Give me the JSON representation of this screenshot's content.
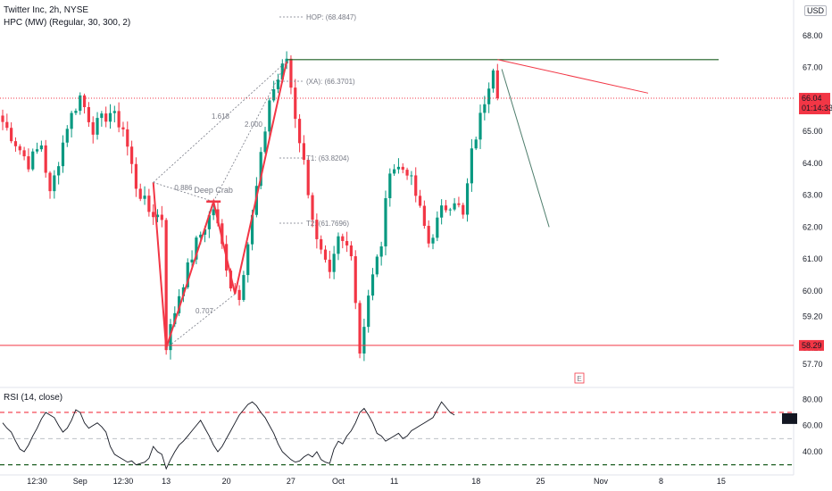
{
  "header": {
    "title": "Twitter Inc, 2h, NYSE",
    "indicator": "HPC (MW) (Regular, 30, 300, 2)",
    "currency": "USD"
  },
  "rsi_panel": {
    "label": "RSI (14, close)",
    "badge": "RSI"
  },
  "price_badges": {
    "current": "66.04",
    "countdown": "01:14:33",
    "support": "58.29"
  },
  "pattern": {
    "name": "Deep Crab",
    "ratios": [
      "0.886",
      "1.618",
      "2.000",
      "0.707"
    ],
    "levels": [
      "HOP: (68.4847)",
      "(XA): (66.3701)",
      "T1: (63.8204)",
      "T2: (61.7696)"
    ],
    "event_marker": "E"
  },
  "colors": {
    "up": "#089981",
    "down": "#f23645",
    "resistance": "#1b5e20",
    "support": "#f23645",
    "rsi_line": "#131722"
  },
  "chart_data": [
    {
      "type": "candlestick",
      "title": "Twitter Inc, 2h, NYSE",
      "ylim": [
        57.3,
        68.7
      ],
      "y_ticks": [
        "68.00",
        "67.00",
        "66.00",
        "65.00",
        "64.00",
        "63.00",
        "62.00",
        "61.00",
        "60.00",
        "59.20",
        "58.20",
        "57.70"
      ],
      "x_ticks": [
        "12:30",
        "Sep",
        "12:30",
        "13",
        "20",
        "27",
        "Oct",
        "11",
        "18",
        "25",
        "Nov",
        "8",
        "15"
      ],
      "x_tick_index": [
        8,
        18,
        28,
        38,
        52,
        67,
        78,
        91,
        110,
        125,
        139,
        153,
        167
      ],
      "anchors": [
        [
          0,
          65.3
        ],
        [
          6,
          64.0
        ],
        [
          9,
          64.6
        ],
        [
          11,
          63.0
        ],
        [
          15,
          65.2
        ],
        [
          18,
          66.1
        ],
        [
          21,
          65.1
        ],
        [
          25,
          65.6
        ],
        [
          28,
          65.1
        ],
        [
          31,
          63.3
        ],
        [
          34,
          62.5
        ],
        [
          37,
          62.3
        ],
        [
          38,
          58.3
        ],
        [
          41,
          59.9
        ],
        [
          45,
          61.5
        ],
        [
          49,
          62.6
        ],
        [
          53,
          60.2
        ],
        [
          55,
          59.9
        ],
        [
          58,
          62.3
        ],
        [
          62,
          66.0
        ],
        [
          66,
          67.3
        ],
        [
          68,
          65.5
        ],
        [
          70,
          64.0
        ],
        [
          73,
          61.5
        ],
        [
          76,
          60.4
        ],
        [
          78,
          61.6
        ],
        [
          81,
          61.3
        ],
        [
          83,
          58.1
        ],
        [
          85,
          59.9
        ],
        [
          88,
          61.5
        ],
        [
          90,
          63.9
        ],
        [
          94,
          63.8
        ],
        [
          96,
          63.0
        ],
        [
          99,
          61.5
        ],
        [
          102,
          62.5
        ],
        [
          105,
          62.9
        ],
        [
          107,
          62.3
        ],
        [
          109,
          64.3
        ],
        [
          112,
          66.0
        ],
        [
          114,
          67.1
        ],
        [
          115,
          66.3
        ]
      ],
      "bars": 116,
      "current_price": 66.04,
      "resistance": 67.25,
      "support": 58.29,
      "pattern_points": [
        [
          35,
          63.4
        ],
        [
          38,
          58.2
        ],
        [
          49,
          62.8
        ],
        [
          54,
          59.9
        ],
        [
          66,
          67.2
        ]
      ],
      "projection": {
        "red": [
          [
            115,
            67.25
          ],
          [
            150,
            66.2
          ]
        ],
        "green": [
          [
            116,
            66.95
          ],
          [
            127,
            62.0
          ]
        ]
      }
    },
    {
      "type": "line",
      "title": "RSI (14, close)",
      "ylim": [
        25,
        87
      ],
      "y_ticks": [
        "80.00",
        "60.00",
        "40.00"
      ],
      "dashed_levels": [
        70,
        50,
        30
      ],
      "values": [
        62,
        58,
        55,
        48,
        42,
        40,
        45,
        52,
        58,
        65,
        70,
        68,
        66,
        60,
        55,
        58,
        64,
        72,
        70,
        62,
        58,
        60,
        62,
        59,
        55,
        44,
        38,
        36,
        34,
        32,
        33,
        30,
        31,
        32,
        35,
        44,
        40,
        38,
        27,
        34,
        40,
        45,
        48,
        52,
        56,
        60,
        64,
        58,
        52,
        45,
        40,
        44,
        50,
        56,
        62,
        68,
        72,
        76,
        78,
        75,
        70,
        66,
        60,
        54,
        46,
        40,
        37,
        34,
        32,
        33,
        36,
        38,
        36,
        40,
        34,
        32,
        31,
        42,
        48,
        46,
        52,
        56,
        62,
        70,
        73,
        68,
        62,
        54,
        52,
        48,
        50,
        52,
        54,
        50,
        52,
        56,
        58,
        60,
        62,
        64,
        66,
        72,
        78,
        74,
        70,
        68
      ]
    }
  ]
}
